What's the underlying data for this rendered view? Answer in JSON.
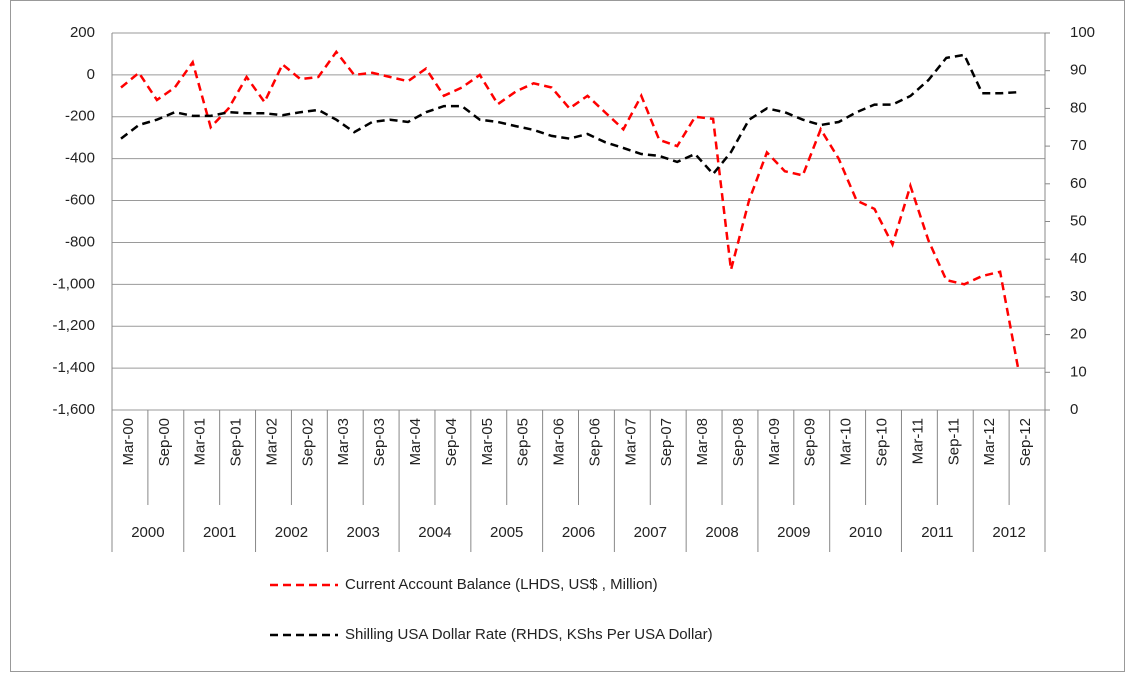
{
  "chart_data": {
    "type": "line",
    "categories": [
      "Mar-00",
      null,
      "Sep-00",
      null,
      "Mar-01",
      null,
      "Sep-01",
      null,
      "Mar-02",
      null,
      "Sep-02",
      null,
      "Mar-03",
      null,
      "Sep-03",
      null,
      "Mar-04",
      null,
      "Sep-04",
      null,
      "Mar-05",
      null,
      "Sep-05",
      null,
      "Mar-06",
      null,
      "Sep-06",
      null,
      "Mar-07",
      null,
      "Sep-07",
      null,
      "Mar-08",
      null,
      "Sep-08",
      null,
      "Mar-09",
      null,
      "Sep-09",
      null,
      "Mar-10",
      null,
      "Sep-10",
      null,
      "Mar-11",
      null,
      "Sep-11",
      null,
      "Mar-12",
      null,
      "Sep-12",
      null
    ],
    "year_groups": [
      "2000",
      "2001",
      "2002",
      "2003",
      "2004",
      "2005",
      "2006",
      "2007",
      "2008",
      "2009",
      "2010",
      "2011",
      "2012"
    ],
    "series": [
      {
        "name": "Current Account Balance (LHDS, US$ , Million)",
        "color": "#ff0000",
        "values": [
          -60,
          10,
          -120,
          -60,
          60,
          -250,
          -160,
          -10,
          -130,
          50,
          -20,
          -10,
          110,
          0,
          10,
          -10,
          -30,
          30,
          -100,
          -60,
          0,
          -140,
          -80,
          -40,
          -60,
          -160,
          -100,
          -180,
          -260,
          -100,
          -310,
          -340,
          -200,
          -210,
          -930,
          -600,
          -370,
          -460,
          -480,
          -260,
          -400,
          -600,
          -640,
          -810,
          -530,
          -790,
          -980,
          -1000,
          -960,
          -940,
          -1400,
          null
        ]
      },
      {
        "name": "Shilling USA Dollar Rate (RHDS, KShs Per USA Dollar)",
        "color": "#000000",
        "axis": "y2",
        "values": [
          72,
          75.6,
          77,
          79,
          78,
          78,
          79,
          78.7,
          78.7,
          78.2,
          79,
          79.6,
          77,
          73.7,
          76.4,
          77,
          76.4,
          79,
          80.6,
          80.6,
          77,
          76.4,
          75.3,
          74.3,
          72.7,
          72,
          73.2,
          71,
          69.5,
          67.9,
          67.4,
          65.8,
          67.9,
          62.6,
          68.4,
          77,
          80,
          79,
          77,
          75.6,
          76.4,
          79,
          81,
          81,
          83.3,
          87.5,
          93.4,
          94.2,
          84,
          84,
          84.3,
          null
        ]
      }
    ],
    "ylim": [
      -1600,
      200
    ],
    "yticks": [
      {
        "value": -1600,
        "label": "-1,600"
      },
      {
        "value": -1400,
        "label": "-1,400"
      },
      {
        "value": -1200,
        "label": "-1,200"
      },
      {
        "value": -1000,
        "label": "-1,000"
      },
      -800,
      -600,
      -400,
      -200,
      0,
      200
    ],
    "y2lim": [
      0,
      100
    ],
    "y2ticks": [
      0,
      10,
      20,
      30,
      40,
      50,
      60,
      70,
      80,
      90,
      100
    ],
    "grid": true
  }
}
